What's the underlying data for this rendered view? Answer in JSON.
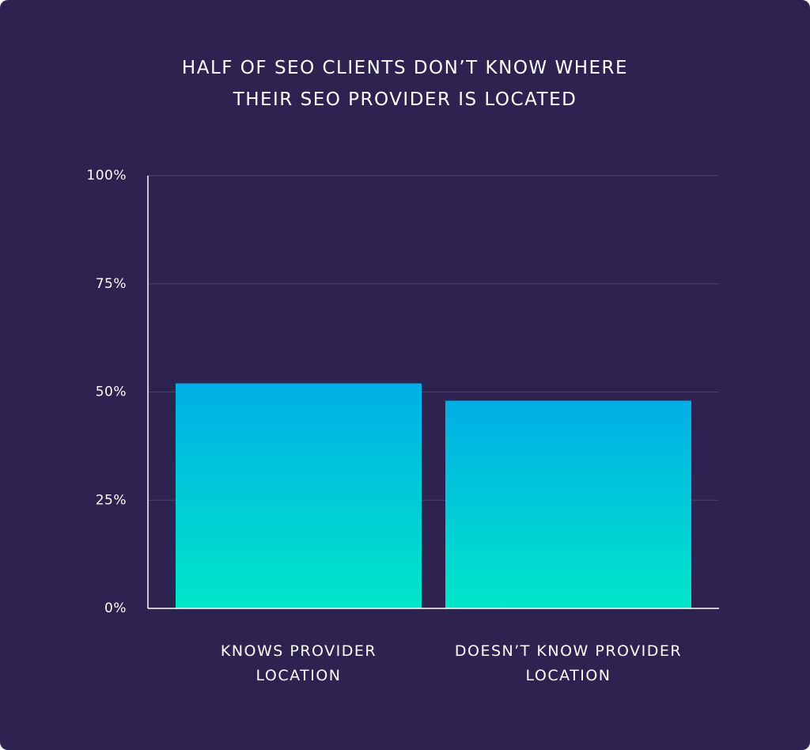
{
  "chart_data": {
    "type": "bar",
    "title": "HALF OF SEO CLIENTS DON’T KNOW WHERE THEIR SEO PROVIDER IS LOCATED",
    "categories": [
      "KNOWS PROVIDER LOCATION",
      "DOESN’T KNOW PROVIDER LOCATION"
    ],
    "values": [
      52,
      48
    ],
    "color": "#00aee6",
    "ylim": [
      0,
      100
    ],
    "yticks": [
      {
        "value": 0,
        "label": "0%"
      },
      {
        "value": 25,
        "label": "25%"
      },
      {
        "value": 50,
        "label": "50%"
      },
      {
        "value": 75,
        "label": "75%"
      },
      {
        "value": 100,
        "label": "100%"
      }
    ],
    "grid": true
  }
}
